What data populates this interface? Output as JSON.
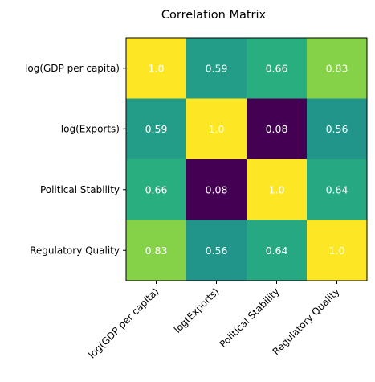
{
  "chart_data": {
    "type": "heatmap",
    "title": "Correlation Matrix",
    "xlabel": "",
    "ylabel": "",
    "row_labels": [
      "log(GDP per capita)",
      "log(Exports)",
      "Political Stability",
      "Regulatory Quality"
    ],
    "col_labels": [
      "log(GDP per capita)",
      "log(Exports)",
      "Political Stability",
      "Regulatory Quality"
    ],
    "values": [
      [
        1.0,
        0.59,
        0.66,
        0.83
      ],
      [
        0.59,
        1.0,
        0.08,
        0.56
      ],
      [
        0.66,
        0.08,
        1.0,
        0.64
      ],
      [
        0.83,
        0.56,
        0.64,
        1.0
      ]
    ],
    "value_labels": [
      [
        "1.0",
        "0.59",
        "0.66",
        "0.83"
      ],
      [
        "0.59",
        "1.0",
        "0.08",
        "0.56"
      ],
      [
        "0.66",
        "0.08",
        "1.0",
        "0.64"
      ],
      [
        "0.83",
        "0.56",
        "0.64",
        "1.0"
      ]
    ],
    "colormap": "viridis",
    "color_range": [
      0.08,
      1.0
    ],
    "annotation_color": "#ffffff",
    "grid": false,
    "legend": "none"
  }
}
